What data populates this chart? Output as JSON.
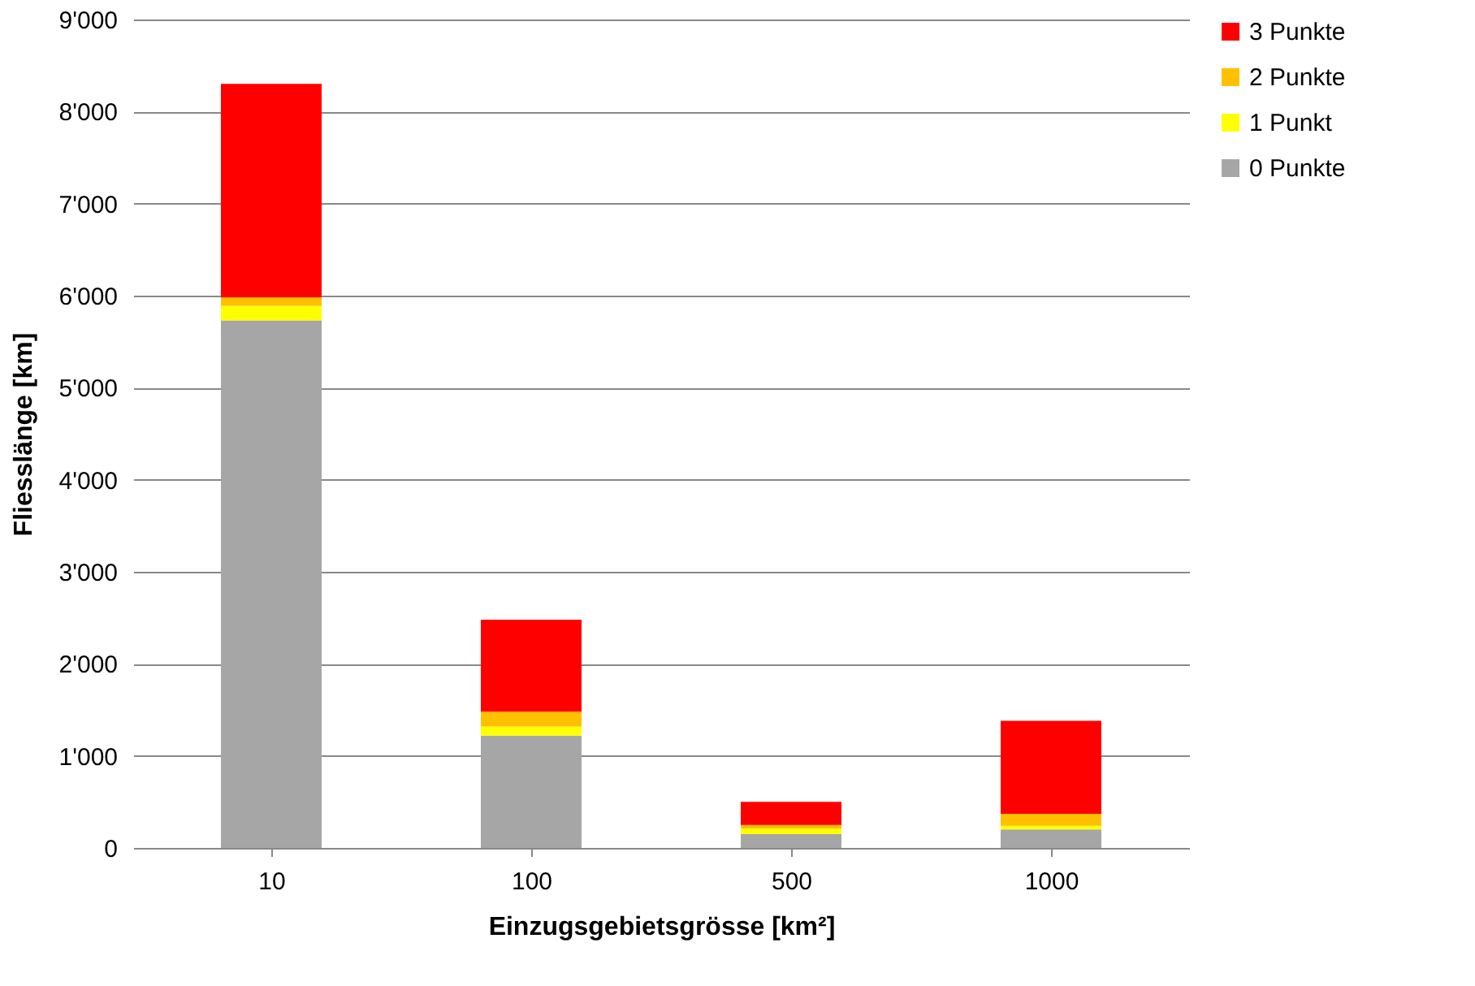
{
  "chart_data": {
    "type": "bar",
    "stacked": true,
    "xlabel": "Einzugsgebietsgrösse [km²]",
    "ylabel": "Fliesslänge [km]",
    "categories": [
      "10",
      "100",
      "500",
      "1000"
    ],
    "series": [
      {
        "name": "0 Punkte",
        "color": "#a6a6a6",
        "values": [
          5730,
          1220,
          150,
          200
        ]
      },
      {
        "name": "1 Punkt",
        "color": "#ffff00",
        "values": [
          160,
          100,
          60,
          40
        ]
      },
      {
        "name": "2 Punkte",
        "color": "#ffc000",
        "values": [
          90,
          160,
          40,
          130
        ]
      },
      {
        "name": "3 Punkte",
        "color": "#ff0000",
        "values": [
          2320,
          1000,
          250,
          1010
        ]
      }
    ],
    "ylim": [
      0,
      9000
    ],
    "yticks": [
      {
        "value": 0,
        "label": "0"
      },
      {
        "value": 1000,
        "label": "1'000"
      },
      {
        "value": 2000,
        "label": "2'000"
      },
      {
        "value": 3000,
        "label": "3'000"
      },
      {
        "value": 4000,
        "label": "4'000"
      },
      {
        "value": 5000,
        "label": "5'000"
      },
      {
        "value": 6000,
        "label": "6'000"
      },
      {
        "value": 7000,
        "label": "7'000"
      },
      {
        "value": 8000,
        "label": "8'000"
      },
      {
        "value": 9000,
        "label": "9'000"
      }
    ],
    "grid": "y",
    "legend": "right"
  }
}
